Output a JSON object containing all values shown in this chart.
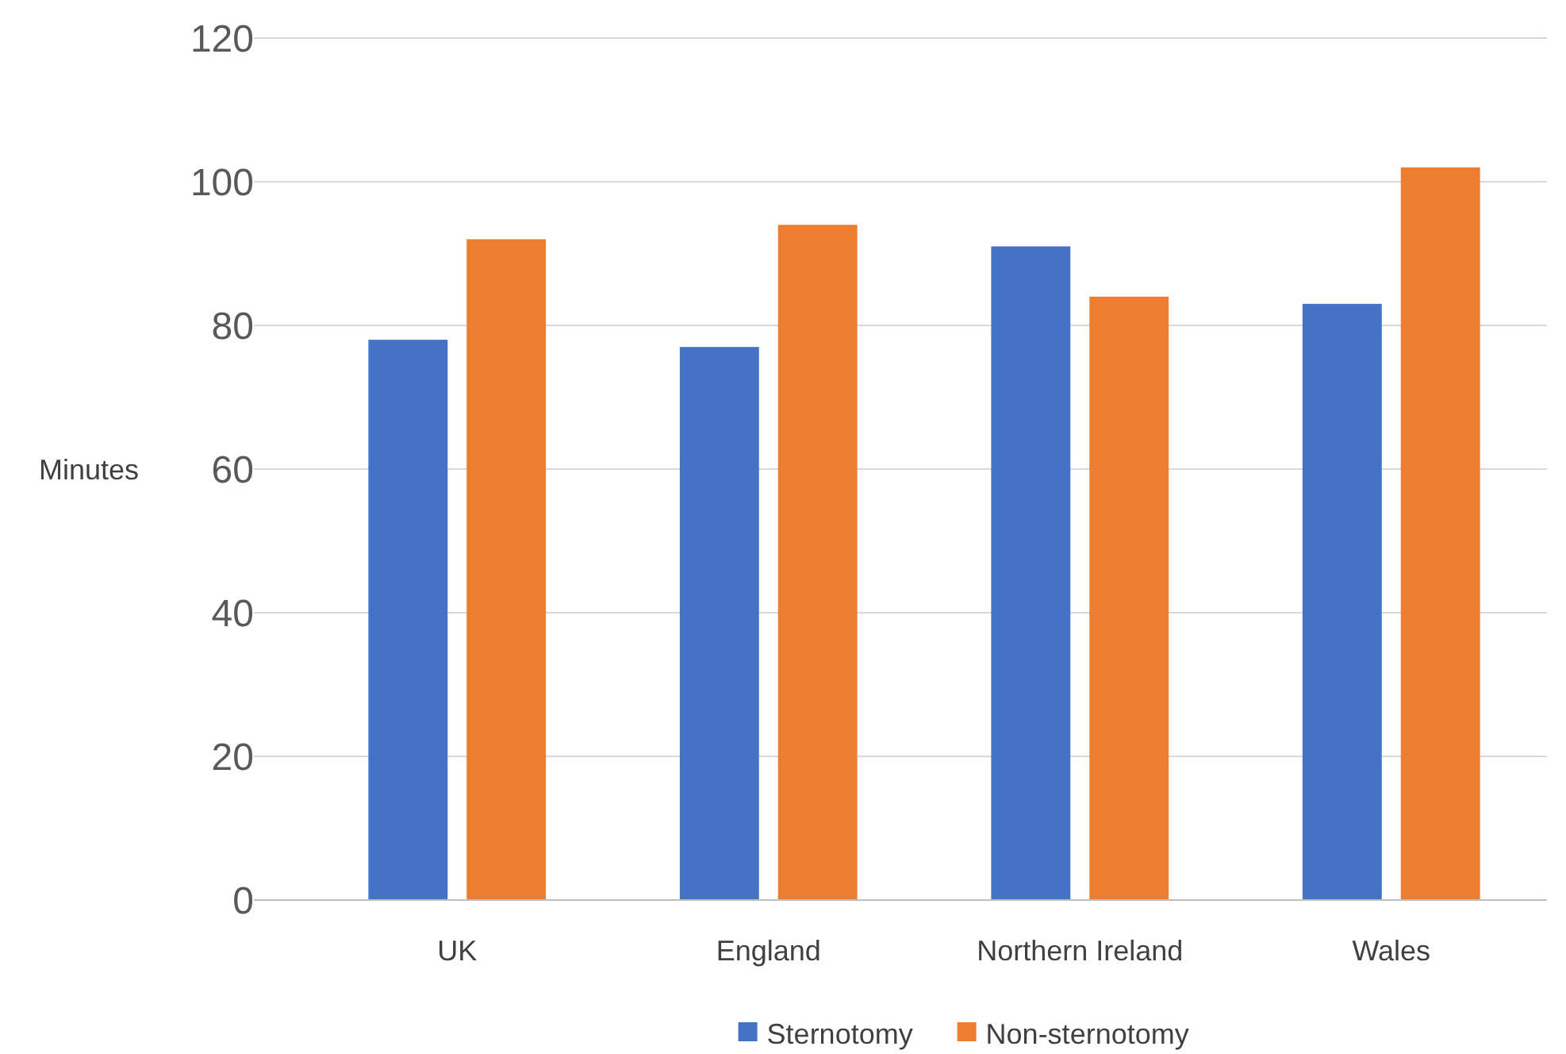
{
  "chart_data": {
    "type": "bar",
    "ylabel": "Minutes",
    "categories": [
      "UK",
      "England",
      "Northern Ireland",
      "Wales"
    ],
    "series": [
      {
        "name": "Sternotomy",
        "color": "#4472c4",
        "values": [
          78,
          77,
          91,
          83
        ]
      },
      {
        "name": "Non-sternotomy",
        "color": "#ed7d31",
        "values": [
          92,
          94,
          84,
          102
        ]
      }
    ],
    "ylim": [
      0,
      120
    ],
    "yticks": [
      0,
      20,
      40,
      60,
      80,
      100,
      120
    ],
    "grid": "y",
    "legend": "bottom"
  }
}
